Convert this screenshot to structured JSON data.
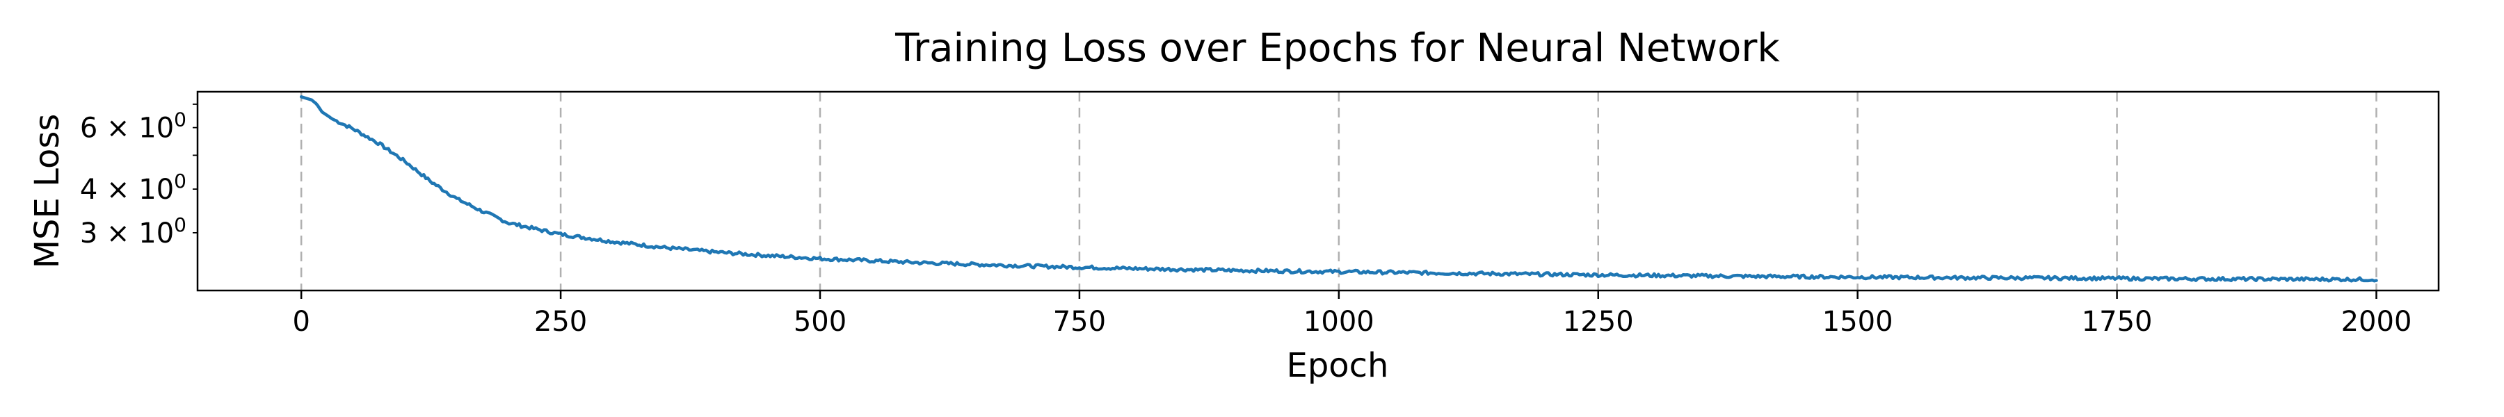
{
  "chart_data": {
    "type": "line",
    "title": "Training Loss over Epochs for Neural Network",
    "xlabel": "Epoch",
    "ylabel": "MSE Loss",
    "xlim": [
      -100,
      2060
    ],
    "ylim": [
      2.05,
      7.6
    ],
    "yscale": "log",
    "x_ticks": [
      0,
      250,
      500,
      750,
      1000,
      1250,
      1500,
      1750,
      2000
    ],
    "x_tick_labels": [
      "0",
      "250",
      "500",
      "750",
      "1000",
      "1250",
      "1500",
      "1750",
      "2000"
    ],
    "y_ticks": [
      {
        "value": 6,
        "base": "6 × 10",
        "exp": "0"
      },
      {
        "value": 4,
        "base": "4 × 10",
        "exp": "0"
      },
      {
        "value": 3,
        "base": "3 × 10",
        "exp": "0"
      }
    ],
    "y_minor_ticks": [
      7,
      6,
      5,
      4,
      3
    ],
    "grid": {
      "x": true,
      "y": false,
      "style": "dashed"
    },
    "color": "#1f77b4",
    "series": [
      {
        "x": [
          0,
          10,
          15,
          20,
          25,
          30,
          50,
          75,
          100,
          125,
          150,
          175,
          200,
          225,
          250,
          300,
          350,
          400,
          450,
          500,
          600,
          700,
          800,
          900,
          1000,
          1100,
          1200,
          1300,
          1400,
          1500,
          1600,
          1700,
          1800,
          1900,
          2000
        ],
        "values": [
          7.35,
          7.2,
          7.0,
          6.65,
          6.5,
          6.35,
          5.95,
          5.4,
          4.8,
          4.2,
          3.75,
          3.45,
          3.2,
          3.08,
          2.97,
          2.83,
          2.72,
          2.64,
          2.58,
          2.53,
          2.46,
          2.41,
          2.37,
          2.34,
          2.32,
          2.3,
          2.28,
          2.265,
          2.25,
          2.24,
          2.23,
          2.225,
          2.215,
          2.21,
          2.205
        ]
      }
    ]
  }
}
